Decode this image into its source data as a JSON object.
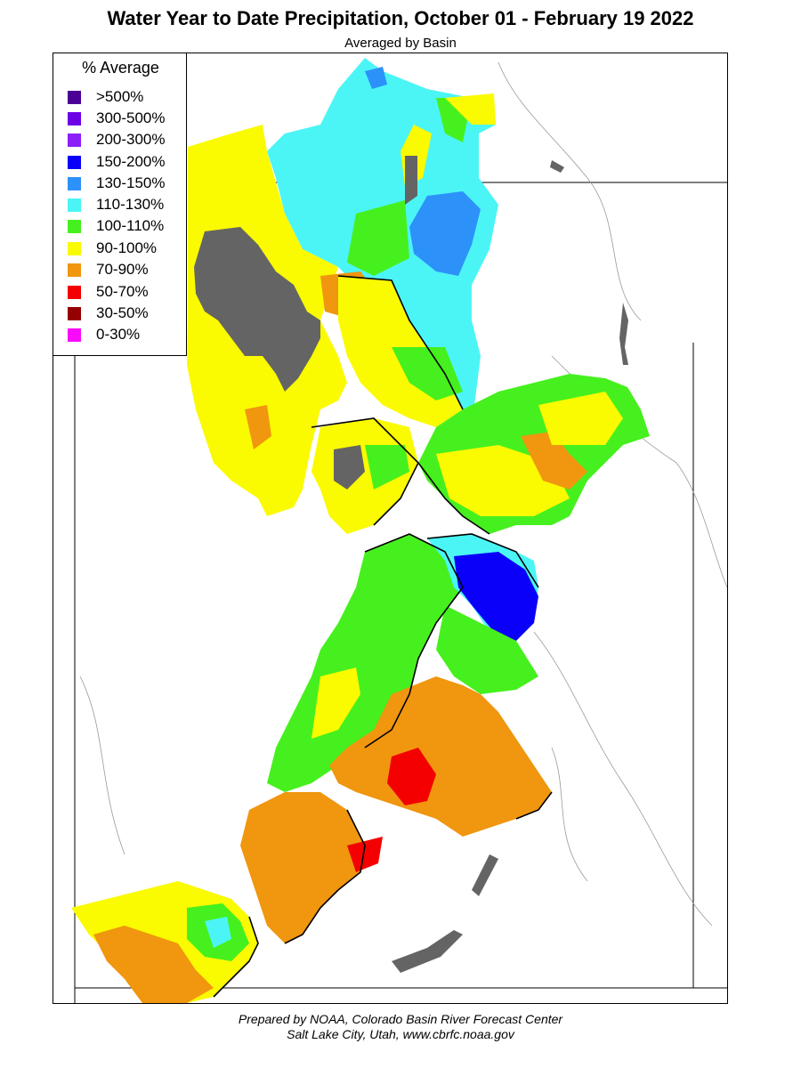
{
  "title": "Water Year to Date Precipitation, October 01  - February 19 2022",
  "subtitle": "Averaged by Basin",
  "legend": {
    "title": "% Average",
    "items": [
      {
        "label": ">500%",
        "color": "#4b0096"
      },
      {
        "label": "300-500%",
        "color": "#6e00e6"
      },
      {
        "label": "200-300%",
        "color": "#8c1efa"
      },
      {
        "label": "150-200%",
        "color": "#0a00fa"
      },
      {
        "label": "130-150%",
        "color": "#2d91fa"
      },
      {
        "label": "110-130%",
        "color": "#4bf5f5"
      },
      {
        "label": "100-110%",
        "color": "#46f01e"
      },
      {
        "label": "90-100%",
        "color": "#fafa00"
      },
      {
        "label": "70-90%",
        "color": "#f0960f"
      },
      {
        "label": "50-70%",
        "color": "#f50000"
      },
      {
        "label": "30-50%",
        "color": "#960000"
      },
      {
        "label": "0-30%",
        "color": "#fa0afa"
      }
    ]
  },
  "no_data_color": "#646464",
  "footer": {
    "line1": "Prepared by NOAA, Colorado Basin River Forecast Center",
    "line2": "Salt Lake City, Utah, www.cbrfc.noaa.gov"
  }
}
